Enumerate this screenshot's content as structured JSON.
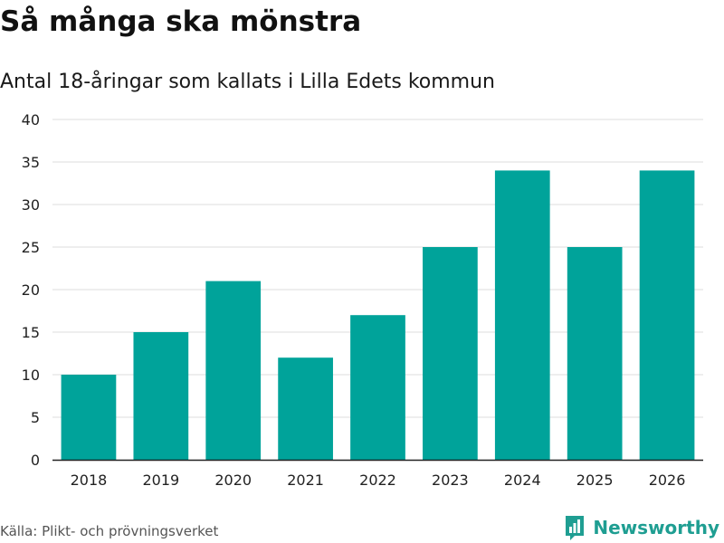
{
  "header": {
    "title": "Så många ska mönstra",
    "subtitle": "Antal 18-åringar som kallats i Lilla Edets kommun"
  },
  "footer": {
    "source": "Källa: Plikt- och prövningsverket",
    "brand": "Newsworthy"
  },
  "colors": {
    "bar": "#00a39a",
    "grid": "#dddddd",
    "axis": "#222222",
    "brand": "#1f9e92"
  },
  "chart_data": {
    "type": "bar",
    "title": "Så många ska mönstra",
    "subtitle": "Antal 18-åringar som kallats i Lilla Edets kommun",
    "xlabel": "",
    "ylabel": "",
    "categories": [
      "2018",
      "2019",
      "2020",
      "2021",
      "2022",
      "2023",
      "2024",
      "2025",
      "2026"
    ],
    "values": [
      10,
      15,
      21,
      12,
      17,
      25,
      34,
      25,
      34
    ],
    "ylim": [
      0,
      40
    ],
    "yticks": [
      0,
      5,
      10,
      15,
      20,
      25,
      30,
      35,
      40
    ],
    "grid": true
  }
}
